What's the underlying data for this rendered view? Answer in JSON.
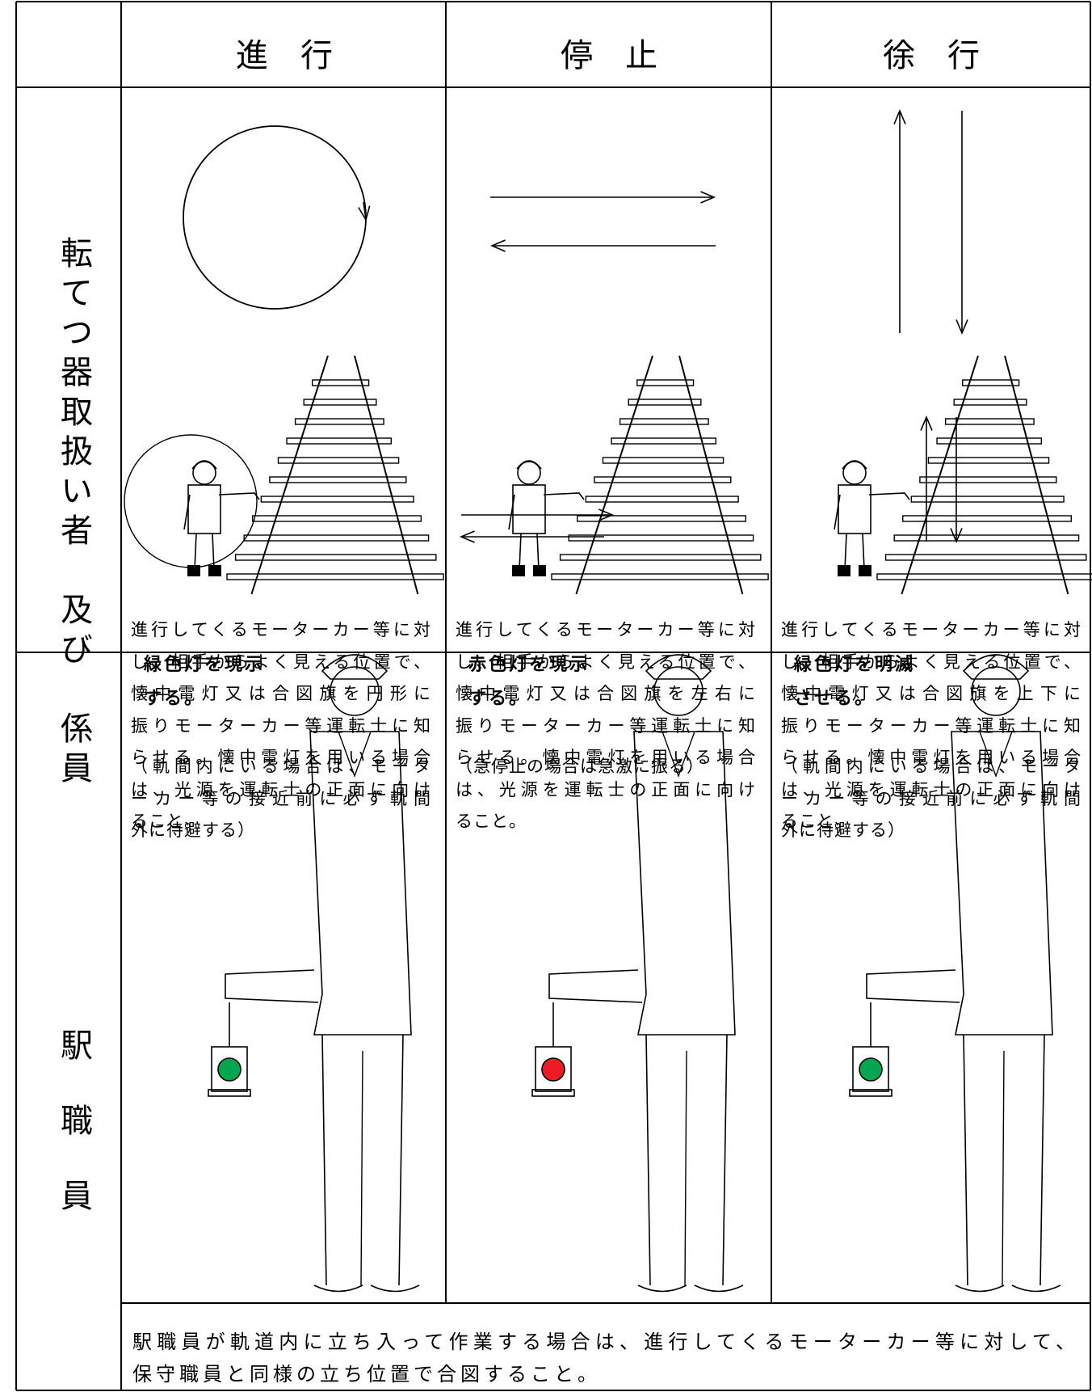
{
  "header": {
    "columns": [
      "進　行",
      "停　止",
      "徐　行"
    ]
  },
  "section1": {
    "label": "転てつ器取扱い者　及び　係員",
    "cells": [
      {
        "lines": [
          "進行してくるモーターカー等に対",
          "し、相手からよく見える位置で、",
          "懐中電灯又は合図旗を円形に",
          "振りモーターカー等運転士に知",
          "らせる。懐中電灯を用いる場合",
          "は、光源を運転士の正面に向け",
          "ること。"
        ],
        "note_lines": [
          "（軌間内にいる場合は、モータ",
          "ーカー等の接近前に必ず軌間",
          "外に待避する）"
        ]
      },
      {
        "lines": [
          "進行してくるモーターカー等に対",
          "し、相手からよく見える位置で、",
          "懐中電灯又は合図旗を左右に",
          "振りモーターカー等運転士に知",
          "らせる。懐中電灯を用いる場合",
          "は、光源を運転士の正面に向け",
          "ること。"
        ],
        "note_lines": [
          "（急停止の場合は急激に振る）"
        ]
      },
      {
        "lines": [
          "進行してくるモーターカー等に対",
          "し、相手からよく見える位置で、",
          "懐中電灯又は合図旗を上下に",
          "振りモーターカー等運転士に知",
          "らせる。懐中電灯を用いる場合",
          "は、光源を運転士の正面に向け",
          "ること。"
        ],
        "note_lines": [
          "（軌間内にいる場合は、モータ",
          "ーカー等の接近前に必ず軌間",
          "外に待避する）"
        ]
      }
    ]
  },
  "section2": {
    "label": "駅職員",
    "cells": [
      {
        "caption_lines": [
          "緑色灯を現示",
          "する。"
        ]
      },
      {
        "caption_lines": [
          "赤色灯を現示",
          "する。"
        ]
      },
      {
        "caption_lines": [
          "緑色灯を明滅",
          "させる。"
        ]
      }
    ],
    "footer_lines": [
      "駅職員が軌道内に立ち入って作業する場合は、進行してくるモーターカー等に対して、",
      "保守職員と同様の立ち位置で合図すること。"
    ]
  }
}
